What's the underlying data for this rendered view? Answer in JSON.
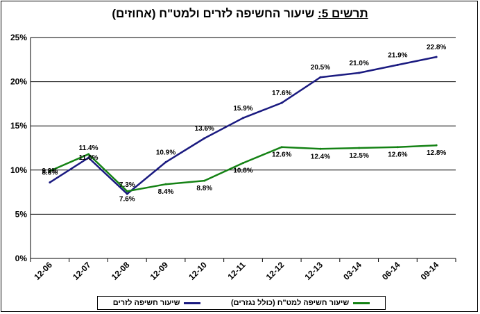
{
  "title": {
    "prefix": "תרשים 5:",
    "text": "שיעור החשיפה לזרים ולמט\"ח (אחוזים)"
  },
  "colors": {
    "series_0": "#1a1a80",
    "series_1": "#148214",
    "grid": "#000000"
  },
  "chart_data": {
    "type": "line",
    "x": [
      "12-06",
      "12-07",
      "12-08",
      "12-09",
      "12-10",
      "12-11",
      "12-12",
      "12-13",
      "03-14",
      "06-14",
      "09-14"
    ],
    "ylim": [
      0,
      25
    ],
    "yticks": [
      0,
      5,
      10,
      15,
      20,
      25
    ],
    "ytick_labels": [
      "0%",
      "5%",
      "10%",
      "15%",
      "20%",
      "25%"
    ],
    "grid": "horizontal",
    "legend": "bottom",
    "series": [
      {
        "name": "שיעור חשיפה לזרים",
        "values": [
          8.6,
          11.4,
          7.3,
          10.9,
          13.6,
          15.9,
          17.6,
          20.5,
          21.0,
          21.9,
          22.8
        ],
        "labels": [
          "8.6%",
          "11.4%",
          "7.3%",
          "10.9%",
          "13.6%",
          "15.9%",
          "17.6%",
          "20.5%",
          "21.0%",
          "21.9%",
          "22.8%"
        ]
      },
      {
        "name": "שיעור חשיפה למט\"ח (כולל נגזרים)",
        "values": [
          9.9,
          11.8,
          7.6,
          8.4,
          8.8,
          10.8,
          12.6,
          12.4,
          12.5,
          12.6,
          12.8
        ],
        "labels": [
          "9.9%",
          "11.8%",
          "7.6%",
          "8.4%",
          "8.8%",
          "10.8%",
          "12.6%",
          "12.4%",
          "12.5%",
          "12.6%",
          "12.8%"
        ]
      }
    ]
  }
}
